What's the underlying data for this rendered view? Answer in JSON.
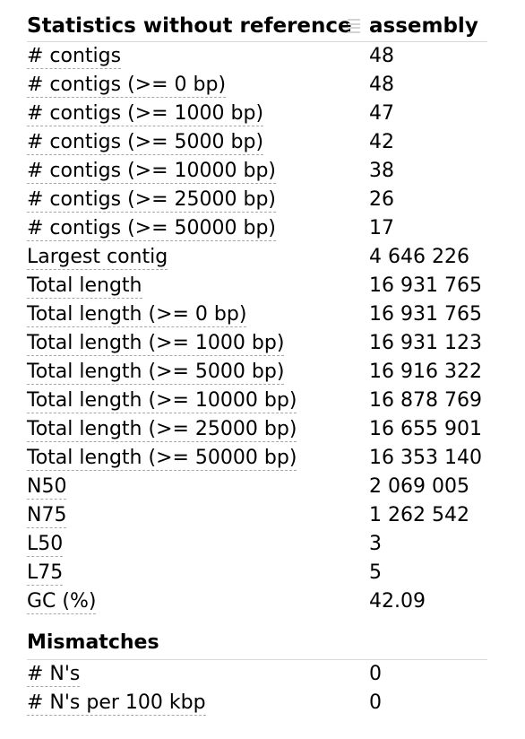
{
  "header": {
    "title": "Statistics without reference",
    "column": "assembly",
    "drag_icon": "drag-handle-icon"
  },
  "stats": [
    {
      "metric": "# contigs",
      "value": "48"
    },
    {
      "metric": "# contigs (>= 0 bp)",
      "value": "48"
    },
    {
      "metric": "# contigs (>= 1000 bp)",
      "value": "47"
    },
    {
      "metric": "# contigs (>= 5000 bp)",
      "value": "42"
    },
    {
      "metric": "# contigs (>= 10000 bp)",
      "value": "38"
    },
    {
      "metric": "# contigs (>= 25000 bp)",
      "value": "26"
    },
    {
      "metric": "# contigs (>= 50000 bp)",
      "value": "17"
    },
    {
      "metric": "Largest contig",
      "value": "4 646 226"
    },
    {
      "metric": "Total length",
      "value": "16 931 765"
    },
    {
      "metric": "Total length (>= 0 bp)",
      "value": "16 931 765"
    },
    {
      "metric": "Total length (>= 1000 bp)",
      "value": "16 931 123"
    },
    {
      "metric": "Total length (>= 5000 bp)",
      "value": "16 916 322"
    },
    {
      "metric": "Total length (>= 10000 bp)",
      "value": "16 878 769"
    },
    {
      "metric": "Total length (>= 25000 bp)",
      "value": "16 655 901"
    },
    {
      "metric": "Total length (>= 50000 bp)",
      "value": "16 353 140"
    },
    {
      "metric": "N50",
      "value": "2 069 005"
    },
    {
      "metric": "N75",
      "value": "1 262 542"
    },
    {
      "metric": "L50",
      "value": "3"
    },
    {
      "metric": "L75",
      "value": "5"
    },
    {
      "metric": "GC (%)",
      "value": "42.09"
    }
  ],
  "mismatches": {
    "title": "Mismatches",
    "rows": [
      {
        "metric": "# N's",
        "value": "0"
      },
      {
        "metric": "# N's per 100 kbp",
        "value": "0"
      }
    ]
  },
  "colors": {
    "divider": "#d9d9d9",
    "dashed_underline": "#a8a8a8",
    "drag_handle": "#d3d3d3"
  }
}
